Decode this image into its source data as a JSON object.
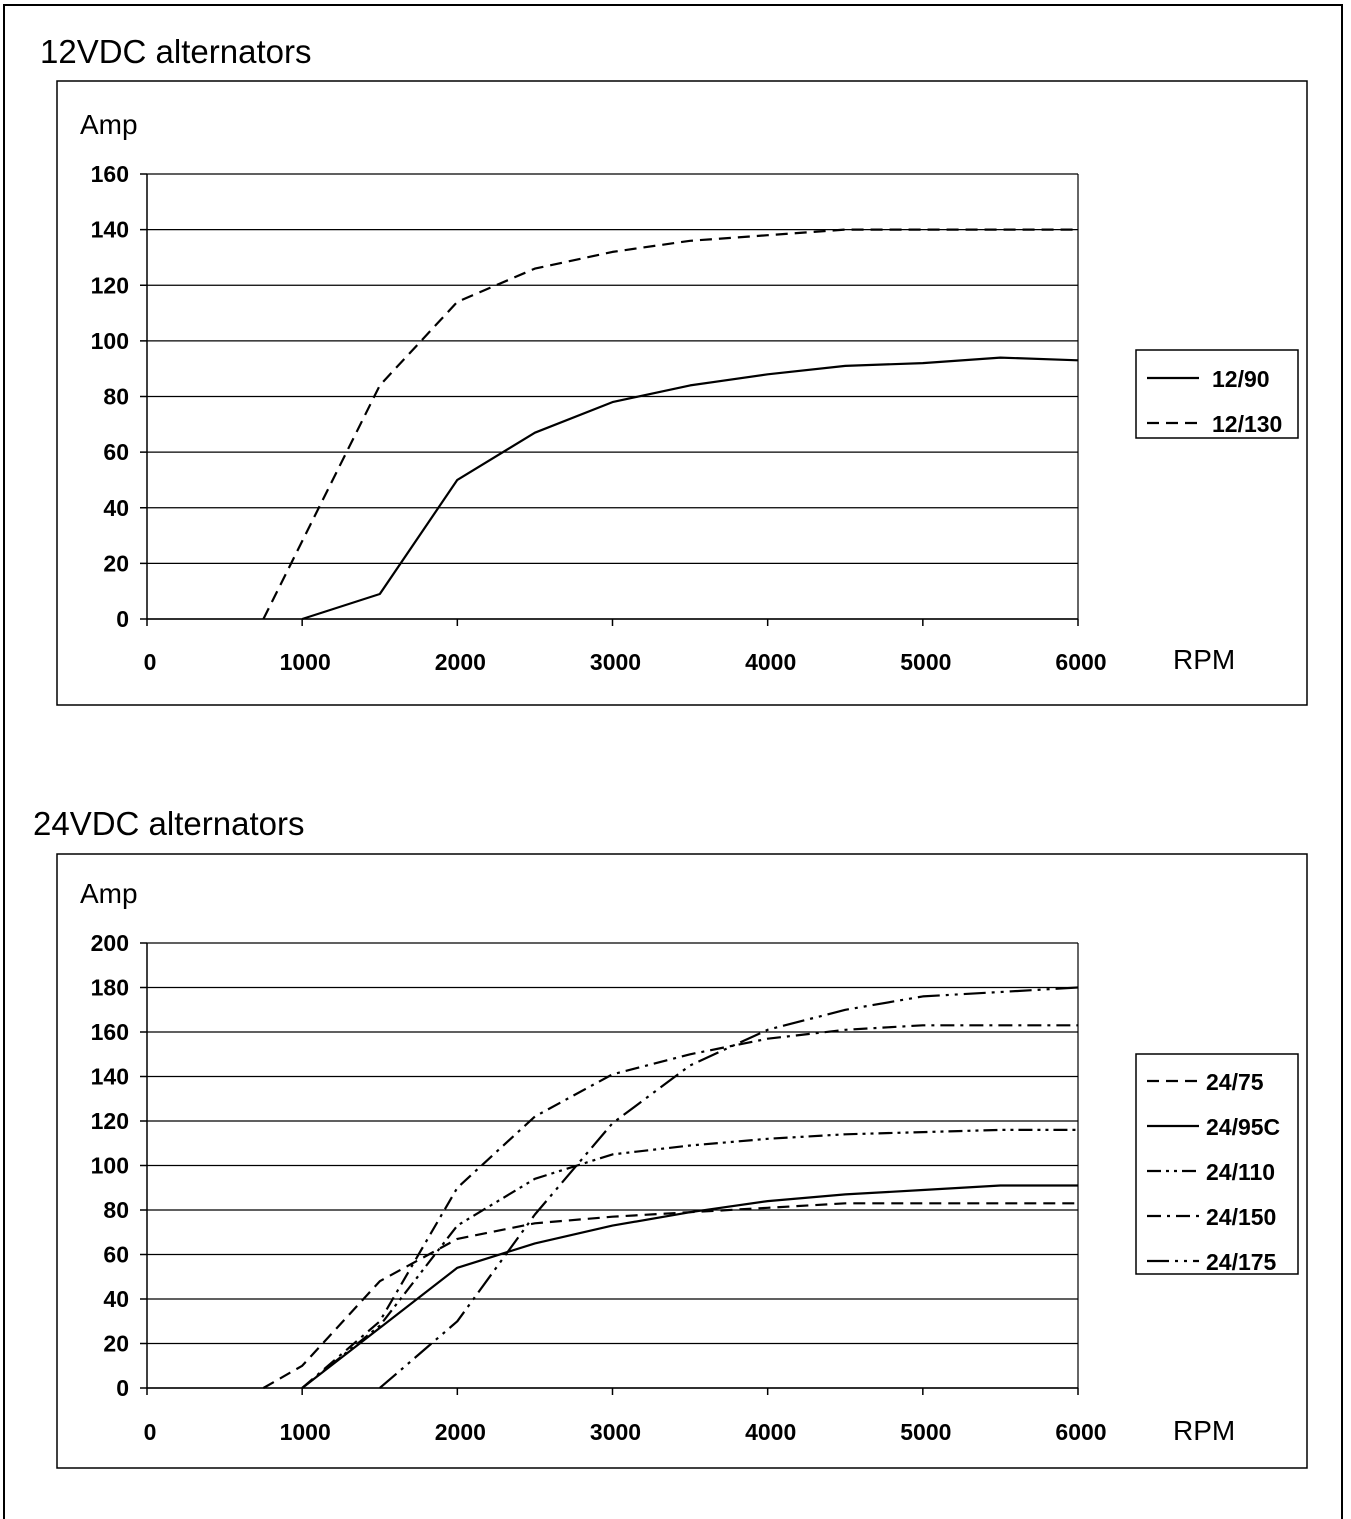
{
  "chart_data": [
    {
      "type": "line",
      "title": "12VDC alternators",
      "ylabel": "Amp",
      "xlabel": "RPM",
      "xlim": [
        0,
        6000
      ],
      "ylim": [
        0,
        160
      ],
      "xticks": [
        0,
        1000,
        2000,
        3000,
        4000,
        5000,
        6000
      ],
      "yticks": [
        0,
        20,
        40,
        60,
        80,
        100,
        120,
        140,
        160
      ],
      "grid": "horizontal",
      "legend_position": "right",
      "series": [
        {
          "name": "12/90",
          "style": "solid",
          "x": [
            1000,
            1500,
            2000,
            2500,
            3000,
            3500,
            4000,
            4500,
            5000,
            5500,
            6000
          ],
          "y": [
            0,
            9,
            50,
            67,
            78,
            84,
            88,
            91,
            92,
            94,
            93
          ]
        },
        {
          "name": "12/130",
          "style": "dash",
          "x": [
            750,
            1000,
            1500,
            2000,
            2500,
            3000,
            3500,
            4000,
            4500,
            5000,
            5500,
            6000
          ],
          "y": [
            0,
            28,
            84,
            114,
            126,
            132,
            136,
            138,
            140,
            140,
            140,
            140
          ]
        }
      ]
    },
    {
      "type": "line",
      "title": "24VDC alternators",
      "ylabel": "Amp",
      "xlabel": "RPM",
      "xlim": [
        0,
        6000
      ],
      "ylim": [
        0,
        200
      ],
      "xticks": [
        0,
        1000,
        2000,
        3000,
        4000,
        5000,
        6000
      ],
      "yticks": [
        0,
        20,
        40,
        60,
        80,
        100,
        120,
        140,
        160,
        180,
        200
      ],
      "grid": "horizontal",
      "legend_position": "right",
      "series": [
        {
          "name": "24/75",
          "style": "dash",
          "x": [
            750,
            1000,
            1500,
            2000,
            2500,
            3000,
            3500,
            4000,
            4500,
            5000,
            5500,
            6000
          ],
          "y": [
            0,
            10,
            48,
            67,
            74,
            77,
            79,
            81,
            83,
            83,
            83,
            83
          ]
        },
        {
          "name": "24/95C",
          "style": "solid",
          "x": [
            1000,
            1500,
            2000,
            2500,
            3000,
            3500,
            4000,
            4500,
            5000,
            5500,
            6000
          ],
          "y": [
            0,
            27,
            54,
            65,
            73,
            79,
            84,
            87,
            89,
            91,
            91
          ]
        },
        {
          "name": "24/110",
          "style": "dashdotdot",
          "x": [
            1000,
            1500,
            2000,
            2500,
            3000,
            3500,
            4000,
            4500,
            5000,
            5500,
            6000
          ],
          "y": [
            0,
            28,
            73,
            94,
            105,
            109,
            112,
            114,
            115,
            116,
            116
          ]
        },
        {
          "name": "24/150",
          "style": "dashdot",
          "x": [
            1000,
            1500,
            2000,
            2500,
            3000,
            3500,
            4000,
            4500,
            5000,
            5500,
            6000
          ],
          "y": [
            0,
            30,
            90,
            122,
            141,
            150,
            157,
            161,
            163,
            163,
            163
          ]
        },
        {
          "name": "24/175",
          "style": "longdashdotdot",
          "x": [
            1500,
            2000,
            2500,
            3000,
            3500,
            4000,
            4500,
            5000,
            5500,
            6000
          ],
          "y": [
            0,
            30,
            78,
            119,
            145,
            161,
            170,
            176,
            178,
            180
          ]
        }
      ]
    }
  ]
}
